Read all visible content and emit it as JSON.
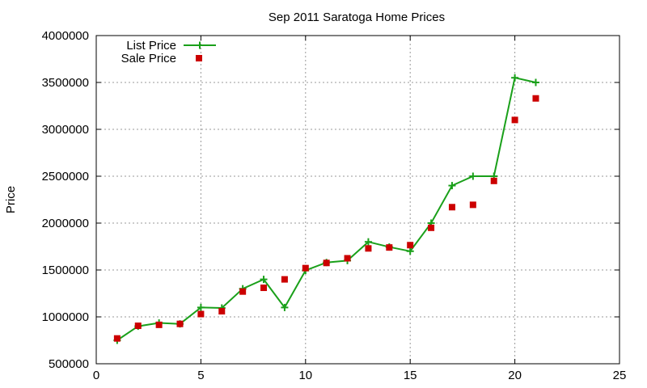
{
  "chart_data": {
    "type": "line",
    "title": "Sep 2011 Saratoga Home Prices",
    "xlabel": "",
    "ylabel": "Price",
    "xlim": [
      0,
      25
    ],
    "ylim": [
      500000,
      4000000
    ],
    "xticks": [
      0,
      5,
      10,
      15,
      20,
      25
    ],
    "yticks": [
      500000,
      1000000,
      1500000,
      2000000,
      2500000,
      3000000,
      3500000,
      4000000
    ],
    "grid": true,
    "legend_position": "top-left",
    "series": [
      {
        "name": "List Price",
        "style": "line-plus",
        "color": "#1aa01a",
        "x": [
          1,
          2,
          3,
          4,
          5,
          6,
          7,
          8,
          9,
          10,
          11,
          12,
          13,
          14,
          15,
          16,
          17,
          18,
          19,
          20,
          21
        ],
        "y": [
          750000,
          900000,
          935000,
          925000,
          1100000,
          1095000,
          1300000,
          1400000,
          1100000,
          1495000,
          1580000,
          1600000,
          1800000,
          1745000,
          1700000,
          2000000,
          2400000,
          2500000,
          2500000,
          3550000,
          3500000
        ]
      },
      {
        "name": "Sale Price",
        "style": "square",
        "color": "#cc0000",
        "x": [
          1,
          2,
          3,
          4,
          5,
          6,
          7,
          8,
          9,
          10,
          11,
          12,
          13,
          14,
          15,
          16,
          17,
          18,
          19,
          20,
          21
        ],
        "y": [
          770000,
          905000,
          915000,
          925000,
          1030000,
          1060000,
          1270000,
          1310000,
          1400000,
          1520000,
          1575000,
          1625000,
          1730000,
          1740000,
          1765000,
          1950000,
          2170000,
          2195000,
          2450000,
          3100000,
          3330000
        ]
      }
    ]
  }
}
